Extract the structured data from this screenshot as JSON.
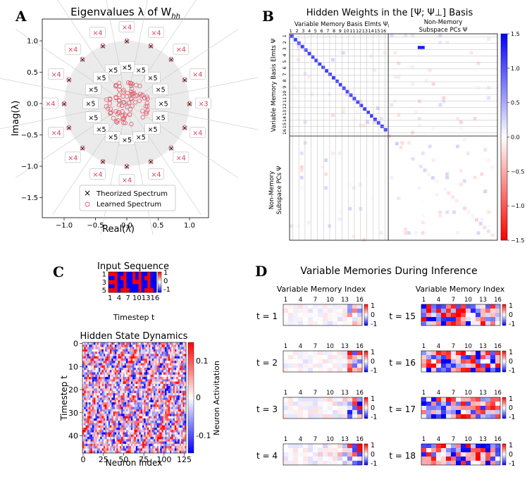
{
  "panels": {
    "A": {
      "label": "A",
      "title": "Eigenvalues λ of W",
      "title_sub": "hh",
      "xlabel": "Real(λ)",
      "ylabel": "Imag(λ)",
      "x_ticks": [
        "−1.0",
        "−0.5",
        "0.0",
        "0.5",
        "1.0"
      ],
      "y_ticks": [
        "1.0",
        "0.5",
        "0.0",
        "−0.5",
        "−1.0",
        "−1.5"
      ],
      "inner_mult": "×5",
      "outer_mult": "×4",
      "special_mult": "×3",
      "legend": [
        "Theorized Spectrum",
        "Learned Spectrum"
      ]
    },
    "B": {
      "label": "B",
      "title": "Hidden Weights in the [Ψ; Ψ⊥] Basis",
      "top_left": "Variable Memory Basis Elmts Ψ",
      "top_left_sub": "l",
      "top_right_1": "Non-Memory",
      "top_right_2": "Subspace PCs Ψ",
      "side_top": "Variable Memory Basis Elmts Ψ",
      "side_bottom_1": "Non-Memory",
      "side_bottom_2": "Subspace PCs Ψ",
      "index_labels": [
        "1",
        "2",
        "3",
        "4",
        "5",
        "6",
        "7",
        "8",
        "9",
        "10",
        "11",
        "12",
        "13",
        "14",
        "15",
        "16"
      ],
      "cbar_ticks": [
        "1.5",
        "1.0",
        "0.5",
        "0.0",
        "−0.5",
        "−1.0",
        "−1.5"
      ]
    },
    "C": {
      "label": "C",
      "input_title": "Input Sequence",
      "input_yticks": [
        "1",
        "3",
        "5"
      ],
      "input_xticks": [
        "1",
        "4",
        "7",
        "10",
        "13",
        "16"
      ],
      "input_xlabel": "Timestep t",
      "input_cbar": [
        "1",
        "0",
        "-1"
      ],
      "hidden_title": "Hidden State Dynamics",
      "hidden_ylabel": "Timestep t",
      "hidden_xlabel": "Neuron Index",
      "hidden_yticks": [
        "0",
        "10",
        "20",
        "30",
        "40"
      ],
      "hidden_xticks": [
        "0",
        "25",
        "50",
        "75",
        "100",
        "125"
      ],
      "hidden_cbar": [
        "0.1",
        "0",
        "-0.1"
      ],
      "hidden_cbar_label": "Neuron Activitation"
    },
    "D": {
      "label": "D",
      "title": "Variable Memories During Inference",
      "col_title": "Variable Memory Index",
      "xticks": [
        "1",
        "4",
        "7",
        "10",
        "13",
        "16"
      ],
      "cbar": [
        "1",
        "0",
        "-1"
      ],
      "left_rows": [
        "t = 1",
        "t = 2",
        "t = 3",
        "t = 4"
      ],
      "right_rows": [
        "t = 15",
        "t = 16",
        "t = 17",
        "t = 18"
      ]
    }
  }
}
